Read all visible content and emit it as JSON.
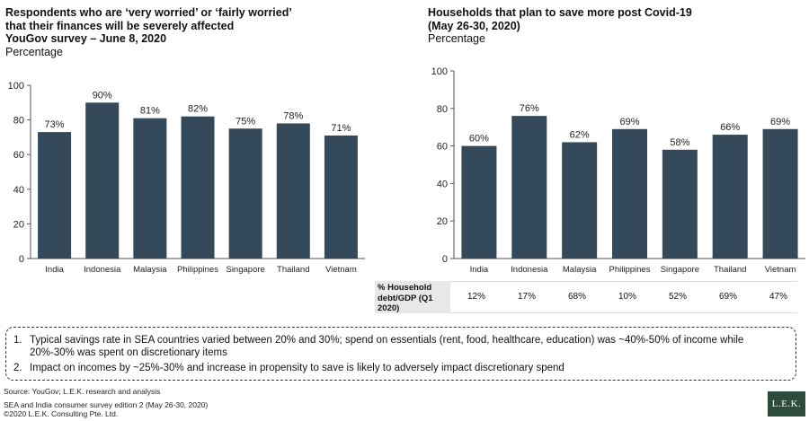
{
  "chart_data": [
    {
      "type": "bar",
      "title_lines": [
        "Respondents who are ‘very worried’ or ‘fairly worried’",
        "that their finances will be severely affected",
        "YouGov survey – June 8, 2020"
      ],
      "subtitle": "Percentage",
      "categories": [
        "India",
        "Indonesia",
        "Malaysia",
        "Philippines",
        "Singapore",
        "Thailand",
        "Vietnam"
      ],
      "values": [
        73,
        90,
        81,
        82,
        75,
        78,
        71
      ],
      "value_labels": [
        "73%",
        "90%",
        "81%",
        "82%",
        "75%",
        "78%",
        "71%"
      ],
      "ylim": [
        0,
        100
      ],
      "yticks": [
        "0",
        "20",
        "40",
        "60",
        "80",
        "100"
      ],
      "grid": false,
      "bar_color": "#34495a"
    },
    {
      "type": "bar",
      "title_lines": [
        "Households that plan to save more post Covid-19",
        "(May 26-30, 2020)"
      ],
      "subtitle": "Percentage",
      "categories": [
        "India",
        "Indonesia",
        "Malaysia",
        "Philippines",
        "Singapore",
        "Thailand",
        "Vietnam"
      ],
      "values": [
        60,
        76,
        62,
        69,
        58,
        66,
        69
      ],
      "value_labels": [
        "60%",
        "76%",
        "62%",
        "69%",
        "58%",
        "66%",
        "69%"
      ],
      "ylim": [
        0,
        100
      ],
      "yticks": [
        "0",
        "20",
        "40",
        "60",
        "80",
        "100"
      ],
      "grid": false,
      "bar_color": "#34495a"
    }
  ],
  "debt_table": {
    "label_lines": [
      "% Household",
      "debt/GDP (Q1",
      "2020)"
    ],
    "values": [
      "12%",
      "17%",
      "68%",
      "10%",
      "52%",
      "69%",
      "47%"
    ]
  },
  "notes": [
    {
      "num": "1.",
      "text": "Typical savings rate in SEA countries varied between 20% and 30%; spend on essentials (rent, food, healthcare, education) was ~40%-50% of income while 20%-30% was spent on discretionary items"
    },
    {
      "num": "2.",
      "text": "Impact on incomes by ~25%-30% and increase in propensity to save is likely to adversely impact discretionary spend"
    }
  ],
  "footer": {
    "source": "Source: YouGov; L.E.K. research and analysis",
    "edition": "SEA and India consumer survey edition 2 (May 26-30, 2020)",
    "copyright": "©2020 L.E.K. Consulting Pte. Ltd."
  },
  "logo_text": "L.E.K."
}
